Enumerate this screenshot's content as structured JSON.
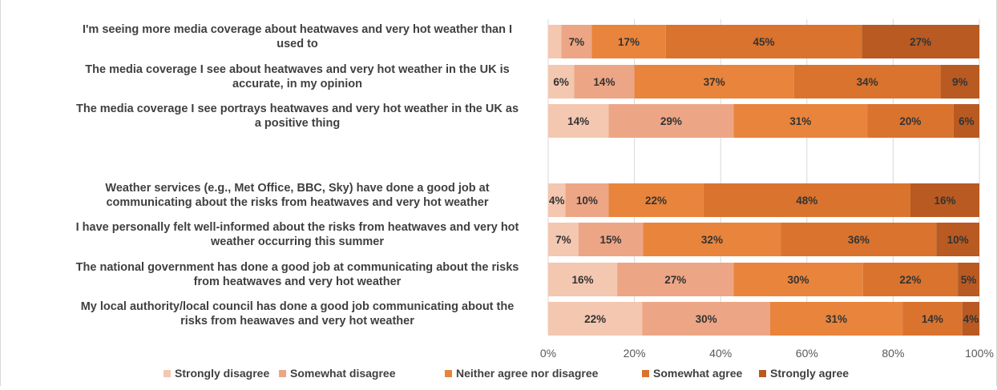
{
  "chart_data": {
    "type": "bar",
    "orientation": "horizontal",
    "stacked": "100%",
    "title": "",
    "xlabel": "",
    "ylabel": "",
    "xlim": [
      0,
      100
    ],
    "x_ticks": [
      "0%",
      "20%",
      "40%",
      "60%",
      "80%",
      "100%"
    ],
    "grid": true,
    "legend_position": "bottom",
    "categories": [
      [
        "I'm seeing more media coverage about heatwaves and very hot weather than I",
        "used to"
      ],
      [
        "The media coverage I see about heatwaves and very hot weather in the UK is",
        "accurate, in my opinion"
      ],
      [
        "The media coverage I see portrays heatwaves and very hot weather in the UK as",
        "a positive thing"
      ],
      [
        "Weather services (e.g., Met Office, BBC, Sky) have done a good job at",
        "communicating about the risks from heatwaves and very hot weather"
      ],
      [
        "I have personally felt well-informed about the risks from heatwaves and very hot",
        "weather occurring this summer"
      ],
      [
        "The national government has done a good job at communicating about the risks",
        "from heatwaves and very hot weather"
      ],
      [
        "My local authority/local council has done a good job communicating about the",
        "risks from heawaves and very hot weather"
      ]
    ],
    "series": [
      {
        "name": "Strongly disagree",
        "color": "#F4C7B0",
        "values": [
          3,
          6,
          14,
          4,
          7,
          16,
          22
        ],
        "labels": [
          "",
          "6%",
          "14%",
          "4%",
          "7%",
          "16%",
          "22%"
        ]
      },
      {
        "name": "Somewhat disagree",
        "color": "#EDA685",
        "values": [
          7,
          14,
          29,
          10,
          15,
          27,
          30
        ],
        "labels": [
          "7%",
          "14%",
          "29%",
          "10%",
          "15%",
          "27%",
          "30%"
        ]
      },
      {
        "name": "Neither agree nor disagree",
        "color": "#E9843C",
        "values": [
          17,
          37,
          31,
          22,
          32,
          30,
          31
        ],
        "labels": [
          "17%",
          "37%",
          "31%",
          "22%",
          "32%",
          "30%",
          "31%"
        ]
      },
      {
        "name": "Somewhat agree",
        "color": "#D9732E",
        "values": [
          45,
          34,
          20,
          48,
          36,
          22,
          14
        ],
        "labels": [
          "45%",
          "34%",
          "20%",
          "48%",
          "36%",
          "22%",
          "14%"
        ]
      },
      {
        "name": "Strongly agree",
        "color": "#B95A22",
        "values": [
          27,
          9,
          6,
          16,
          10,
          5,
          4
        ],
        "labels": [
          "27%",
          "9%",
          "6%",
          "16%",
          "10%",
          "5%",
          "4%"
        ]
      }
    ]
  }
}
